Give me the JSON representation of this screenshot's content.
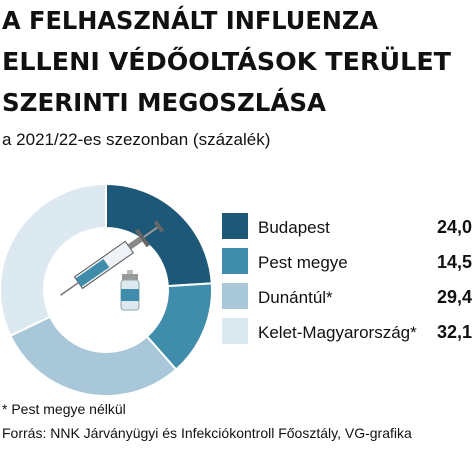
{
  "chart_data": {
    "type": "donut",
    "title": [
      "A FELHASZNÁLT INFLUENZA",
      "ELLENI VÉDŐOLTÁSOK TERÜLET",
      "SZERINTI MEGOSZLÁSA"
    ],
    "subtitle": "a 2021/22-es szezonban (százalék)",
    "categories": [
      "Budapest",
      "Pest megye",
      "Dunántúl*",
      "Kelet-Magyarország*"
    ],
    "values": [
      24.0,
      14.5,
      29.4,
      32.1
    ],
    "value_labels": [
      "24,0",
      "14,5",
      "29,4",
      "32,1"
    ],
    "colors": [
      "#1d5878",
      "#3f8cab",
      "#a8c7d9",
      "#dde9f1"
    ],
    "footnote": "* Pest megye nélkül",
    "source": "Forrás: NNK Járványügyi és Infekciókontroll Főosztály, VG-grafika"
  }
}
